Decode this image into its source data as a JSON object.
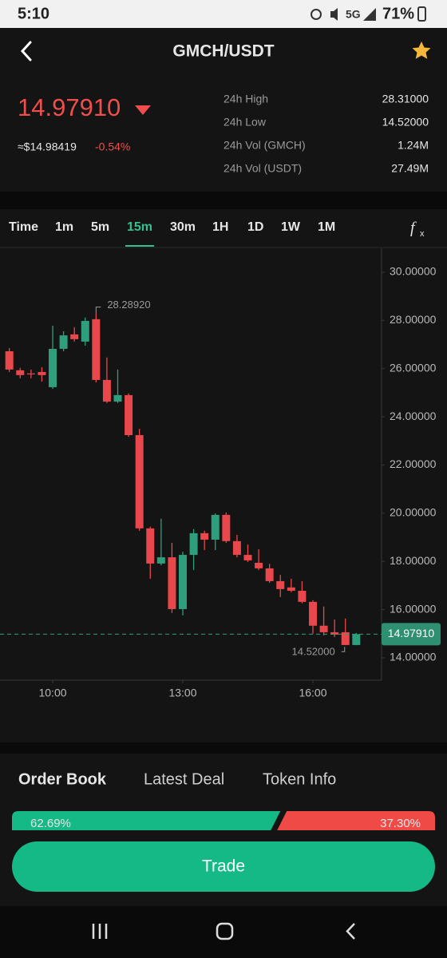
{
  "status_bar": {
    "time": "5:10",
    "network": "5G",
    "battery": "71%"
  },
  "header": {
    "title": "GMCH/USDT"
  },
  "price": {
    "last": "14.97910",
    "fiat": "≈$14.98419",
    "change": "-0.54%"
  },
  "stats": [
    {
      "label": "24h High",
      "value": "28.31000"
    },
    {
      "label": "24h Low",
      "value": "14.52000"
    },
    {
      "label": "24h Vol (GMCH)",
      "value": "1.24M"
    },
    {
      "label": "24h Vol (USDT)",
      "value": "27.49M"
    }
  ],
  "tabs": [
    "Time",
    "1m",
    "5m",
    "15m",
    "30m",
    "1H",
    "1D",
    "1W",
    "1M"
  ],
  "active_tab": 3,
  "chart": {
    "type": "candlestick",
    "up_color": "#2e9e7c",
    "down_color": "#e8474b",
    "x": [
      9,
      9.25,
      9.5,
      9.75,
      10,
      10.25,
      10.5,
      10.75,
      11,
      11.25,
      11.5,
      11.75,
      12,
      12.25,
      12.5,
      12.75,
      13,
      13.25,
      13.5,
      13.75,
      14,
      14.25,
      14.5,
      14.75,
      15,
      15.25,
      15.5,
      15.75,
      16,
      16.25,
      16.5,
      16.75,
      17
    ],
    "open": [
      26.72,
      25.93,
      25.8,
      25.86,
      25.23,
      26.82,
      27.42,
      27.12,
      28.05,
      25.53,
      24.63,
      24.9,
      23.24,
      19.37,
      17.91,
      18.17,
      16.02,
      18.27,
      19.17,
      18.9,
      19.93,
      18.84,
      18.27,
      17.94,
      17.71,
      17.18,
      16.92,
      16.78,
      16.32,
      15.33,
      15.06,
      15.06,
      14.53
    ],
    "high": [
      26.85,
      26.03,
      25.96,
      26.06,
      27.78,
      27.55,
      27.72,
      28.12,
      28.2892,
      26.46,
      25.96,
      24.97,
      23.5,
      19.44,
      19.77,
      18.77,
      18.4,
      19.34,
      19.27,
      19.99,
      20.03,
      19.1,
      18.7,
      18.5,
      17.9,
      17.44,
      17.28,
      17.18,
      16.39,
      16.13,
      15.59,
      15.63,
      15.03
    ],
    "low": [
      25.86,
      25.6,
      25.6,
      25.46,
      25.16,
      26.72,
      27.12,
      26.95,
      25.43,
      24.57,
      24.57,
      23.17,
      19.27,
      17.28,
      17.84,
      15.86,
      15.76,
      17.64,
      18.47,
      18.47,
      18.77,
      18.17,
      17.97,
      17.64,
      17.11,
      16.52,
      16.72,
      16.26,
      15.0,
      14.93,
      14.86,
      14.52,
      14.52
    ],
    "close": [
      25.96,
      25.73,
      25.78,
      25.73,
      26.82,
      27.38,
      27.22,
      27.98,
      25.53,
      24.63,
      24.9,
      23.24,
      19.37,
      17.91,
      18.17,
      16.02,
      18.27,
      19.17,
      18.9,
      19.93,
      18.84,
      18.27,
      18.04,
      17.71,
      17.18,
      16.85,
      16.78,
      16.32,
      15.33,
      15.06,
      14.96,
      14.53,
      14.98
    ],
    "xlim": [
      8.785,
      17.583
    ],
    "xticks": [
      {
        "value": 10,
        "label": "10:00"
      },
      {
        "value": 13,
        "label": "13:00"
      },
      {
        "value": 16,
        "label": "16:00"
      }
    ],
    "ylim": [
      13.07,
      30.96
    ],
    "yticks": [
      {
        "value": 30,
        "label": "30.00000"
      },
      {
        "value": 28,
        "label": "28.00000"
      },
      {
        "value": 26,
        "label": "26.00000"
      },
      {
        "value": 24,
        "label": "24.00000"
      },
      {
        "value": 22,
        "label": "22.00000"
      },
      {
        "value": 20,
        "label": "20.00000"
      },
      {
        "value": 18,
        "label": "18.00000"
      },
      {
        "value": 16,
        "label": "16.00000"
      },
      {
        "value": 14,
        "label": "14.00000"
      }
    ],
    "max_marker": {
      "value": 28.2892,
      "label": "28.28920",
      "x": 11
    },
    "min_marker": {
      "value": 14.52,
      "label": "14.52000",
      "x": 16.75
    },
    "last_price": {
      "value": 14.9791,
      "label": "14.97910"
    }
  },
  "bottom_tabs": [
    "Order Book",
    "Latest Deal",
    "Token Info"
  ],
  "ratio": {
    "buy": {
      "value": 62.69,
      "label": "62.69%"
    },
    "sell": {
      "value": 37.3,
      "label": "37.30%"
    }
  },
  "trade_button": "Trade"
}
